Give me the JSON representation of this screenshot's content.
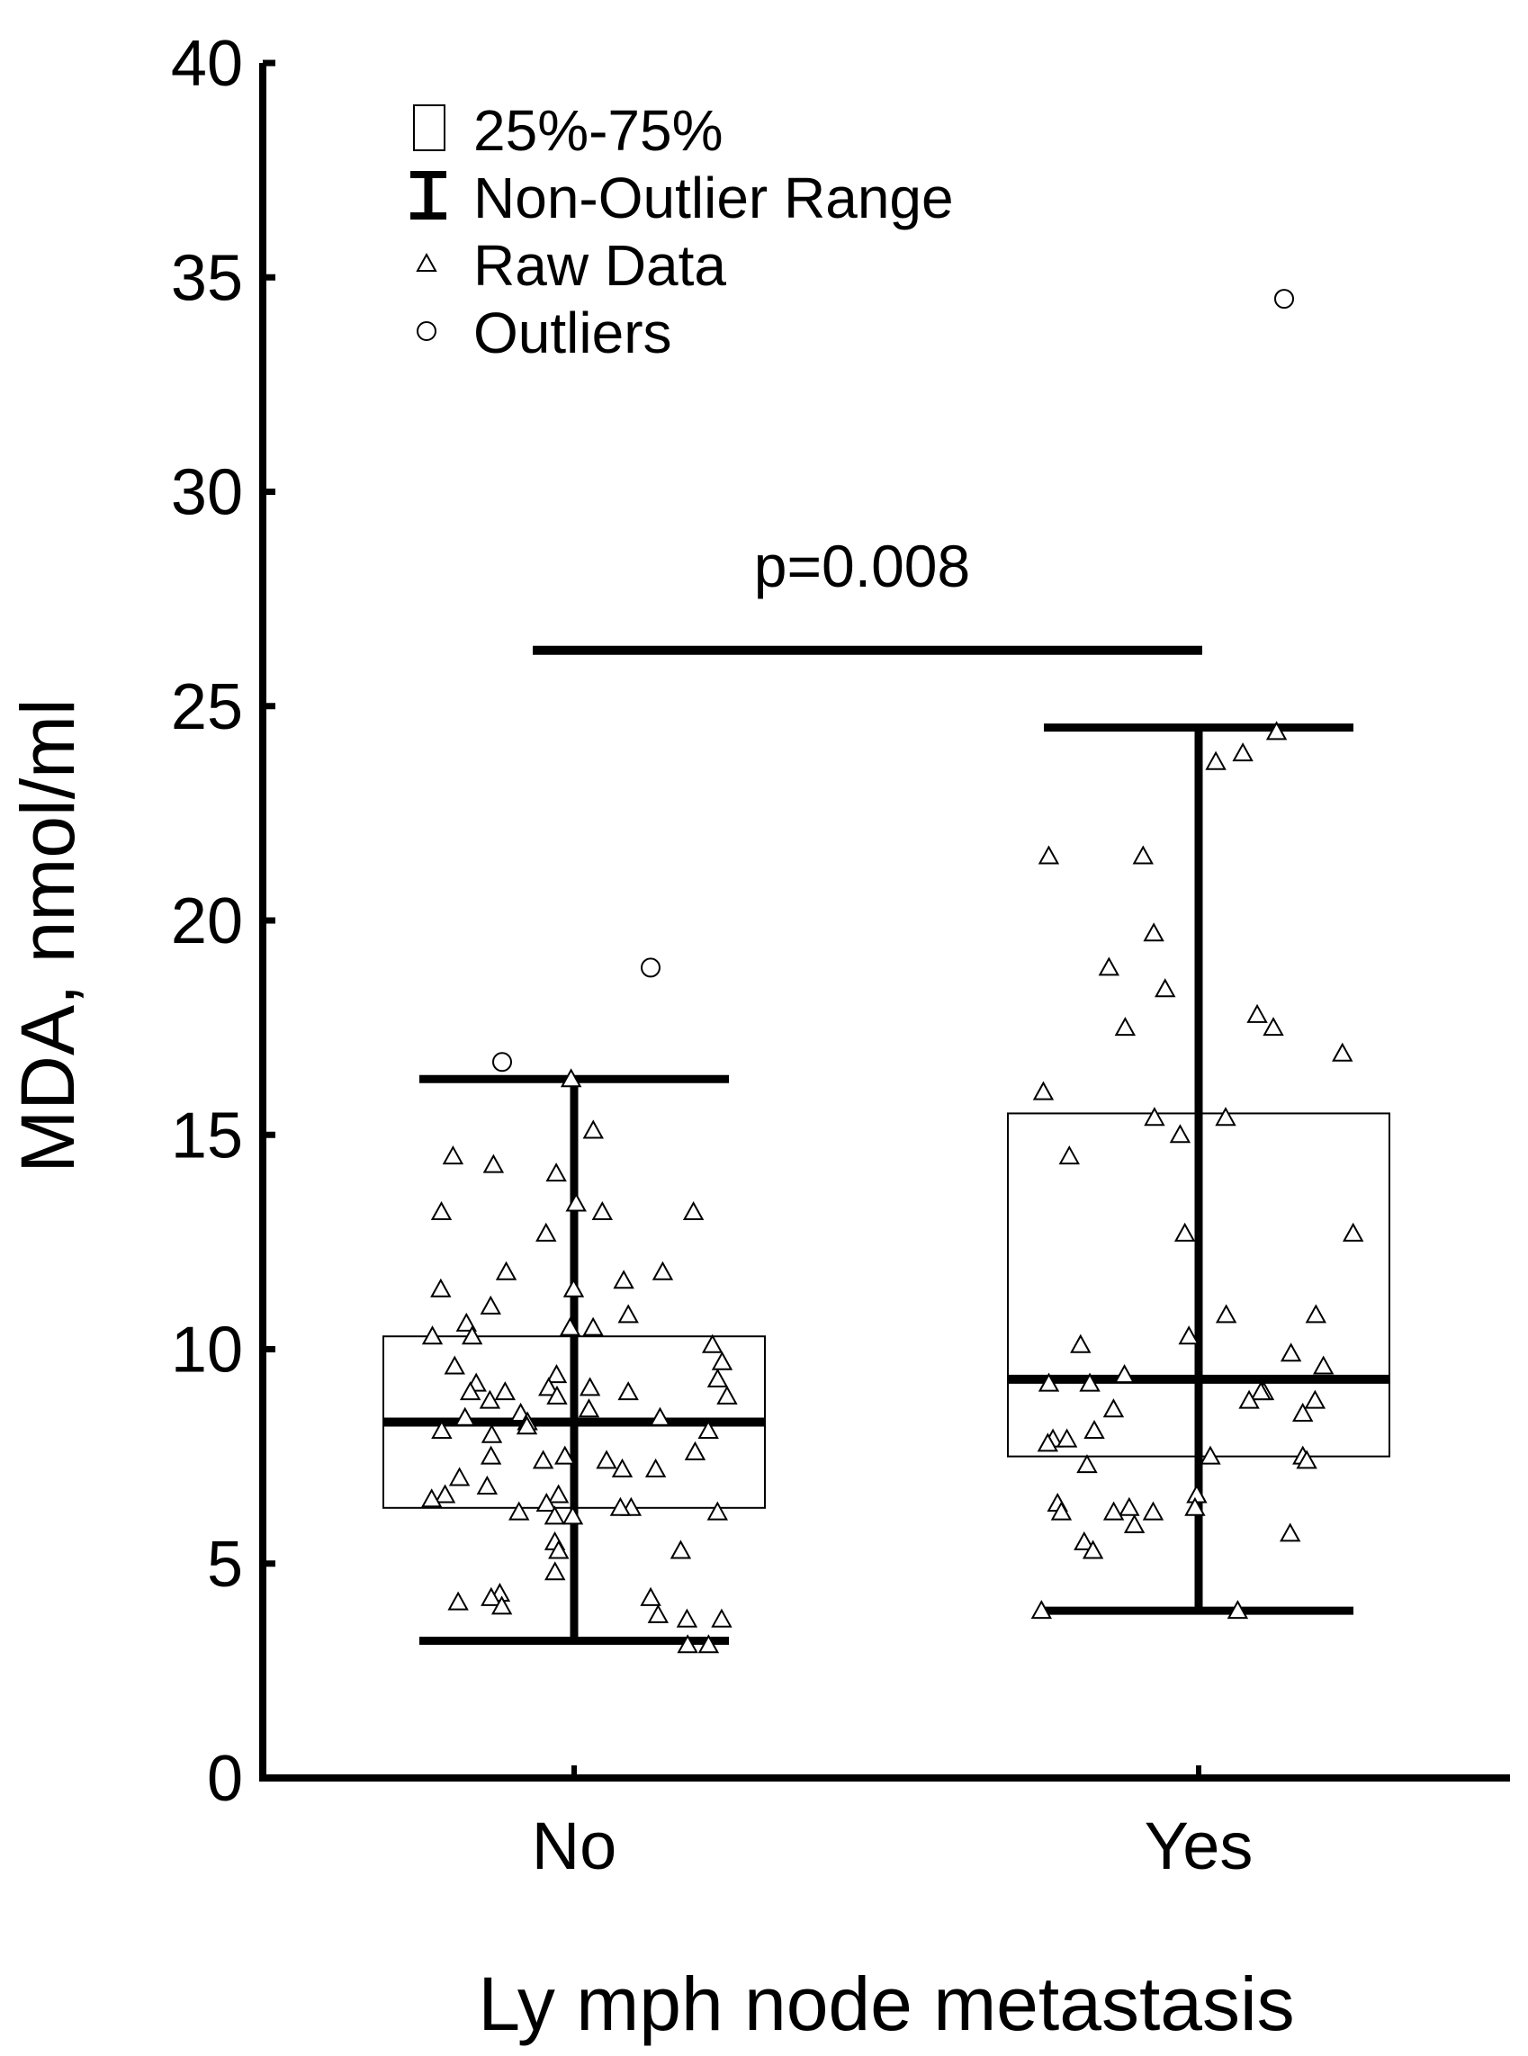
{
  "chart_data": {
    "type": "box",
    "xlabel": "Ly mph node metastasis",
    "ylabel": "MDA, nmol/ml",
    "ylim": [
      0,
      40
    ],
    "yticks": [
      0,
      5,
      10,
      15,
      20,
      25,
      30,
      35,
      40
    ],
    "categories": [
      "No",
      "Yes"
    ],
    "legend": {
      "position": "top-left",
      "items": [
        {
          "symbol": "box",
          "label": "25%-75%"
        },
        {
          "symbol": "range",
          "label": "Non-Outlier Range"
        },
        {
          "symbol": "triangle",
          "label": "Raw Data"
        },
        {
          "symbol": "circle",
          "label": "Outliers"
        }
      ]
    },
    "significance": {
      "label": "p=0.008",
      "y": 26.3,
      "from": "No",
      "to": "Yes"
    },
    "groups": [
      {
        "name": "No",
        "median": 8.3,
        "q1": 6.3,
        "q3": 10.3,
        "whisker_low": 3.2,
        "whisker_high": 16.3,
        "outliers": [
          16.7,
          18.9
        ],
        "raw": [
          16.3,
          15.1,
          14.5,
          14.3,
          14.1,
          13.4,
          13.2,
          13.2,
          13.2,
          12.7,
          11.8,
          11.8,
          11.6,
          11.4,
          11.4,
          11.0,
          10.8,
          10.6,
          10.5,
          10.5,
          10.3,
          10.3,
          10.1,
          9.7,
          9.6,
          9.4,
          9.3,
          9.2,
          9.1,
          9.1,
          9.0,
          9.0,
          9.0,
          8.9,
          8.9,
          8.8,
          8.6,
          8.5,
          8.4,
          8.4,
          8.3,
          8.2,
          8.1,
          8.1,
          8.0,
          7.6,
          7.5,
          7.5,
          7.4,
          7.4,
          7.2,
          7.2,
          7.0,
          6.8,
          6.6,
          6.6,
          6.5,
          6.4,
          6.3,
          6.3,
          6.2,
          6.2,
          6.1,
          6.1,
          5.5,
          5.3,
          5.3,
          4.8,
          4.3,
          4.2,
          4.2,
          4.1,
          4.0,
          3.8,
          3.7,
          3.7,
          3.1,
          3.1
        ]
      },
      {
        "name": "Yes",
        "median": 9.3,
        "q1": 7.5,
        "q3": 15.5,
        "whisker_low": 3.9,
        "whisker_high": 24.5,
        "outliers": [
          34.5
        ],
        "raw": [
          24.4,
          23.9,
          23.7,
          21.5,
          21.5,
          19.7,
          18.9,
          18.4,
          17.8,
          17.5,
          17.5,
          16.9,
          16.0,
          15.4,
          15.4,
          15.0,
          14.5,
          12.7,
          12.7,
          10.8,
          10.8,
          10.3,
          10.1,
          9.9,
          9.6,
          9.4,
          9.2,
          9.2,
          9.0,
          9.0,
          8.8,
          8.8,
          8.6,
          8.5,
          8.1,
          7.9,
          7.9,
          7.8,
          7.5,
          7.5,
          7.4,
          7.3,
          6.6,
          6.4,
          6.3,
          6.3,
          6.2,
          6.2,
          6.2,
          5.9,
          5.7,
          5.5,
          5.3,
          3.9,
          3.9
        ]
      }
    ]
  }
}
